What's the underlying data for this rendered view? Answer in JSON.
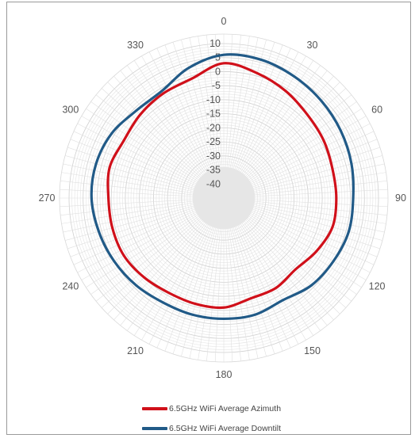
{
  "chart_data": {
    "type": "polar-line",
    "title": "",
    "angle_labels": [
      "0",
      "30",
      "60",
      "90",
      "120",
      "150",
      "180",
      "210",
      "240",
      "270",
      "300",
      "330"
    ],
    "radial_labels": [
      "10",
      "5",
      "0",
      "-5",
      "-10",
      "-15",
      "-20",
      "-25",
      "-30",
      "-35",
      "-40"
    ],
    "radial_range": [
      -45,
      10
    ],
    "grid": true,
    "legend_position": "bottom",
    "series": [
      {
        "name": "6.5GHz WiFi Average Azimuth",
        "color": "#d0101a",
        "angles": [
          0,
          15,
          30,
          45,
          60,
          75,
          90,
          105,
          120,
          135,
          150,
          165,
          180,
          195,
          210,
          225,
          240,
          255,
          270,
          285,
          300,
          315,
          330,
          345,
          360
        ],
        "values": [
          3,
          1,
          -1,
          -3,
          -4,
          -5,
          -5,
          -5,
          -7,
          -9,
          -8,
          -8,
          -6,
          -6,
          -6,
          -5,
          -4,
          -4,
          -4,
          -3,
          -4,
          -3,
          -2,
          -1,
          3
        ]
      },
      {
        "name": "6.5GHz WiFi Average Downtilt",
        "color": "#215a87",
        "angles": [
          0,
          15,
          30,
          45,
          60,
          75,
          90,
          105,
          120,
          135,
          150,
          165,
          180,
          195,
          210,
          225,
          240,
          255,
          270,
          285,
          300,
          315,
          330,
          345,
          360
        ],
        "values": [
          6,
          6,
          5,
          4,
          3,
          2,
          1,
          1,
          0,
          -1,
          -3,
          -2,
          -2,
          -2,
          -2,
          -1,
          0,
          1,
          2,
          2,
          1,
          -1,
          -1,
          3,
          6
        ]
      }
    ]
  }
}
